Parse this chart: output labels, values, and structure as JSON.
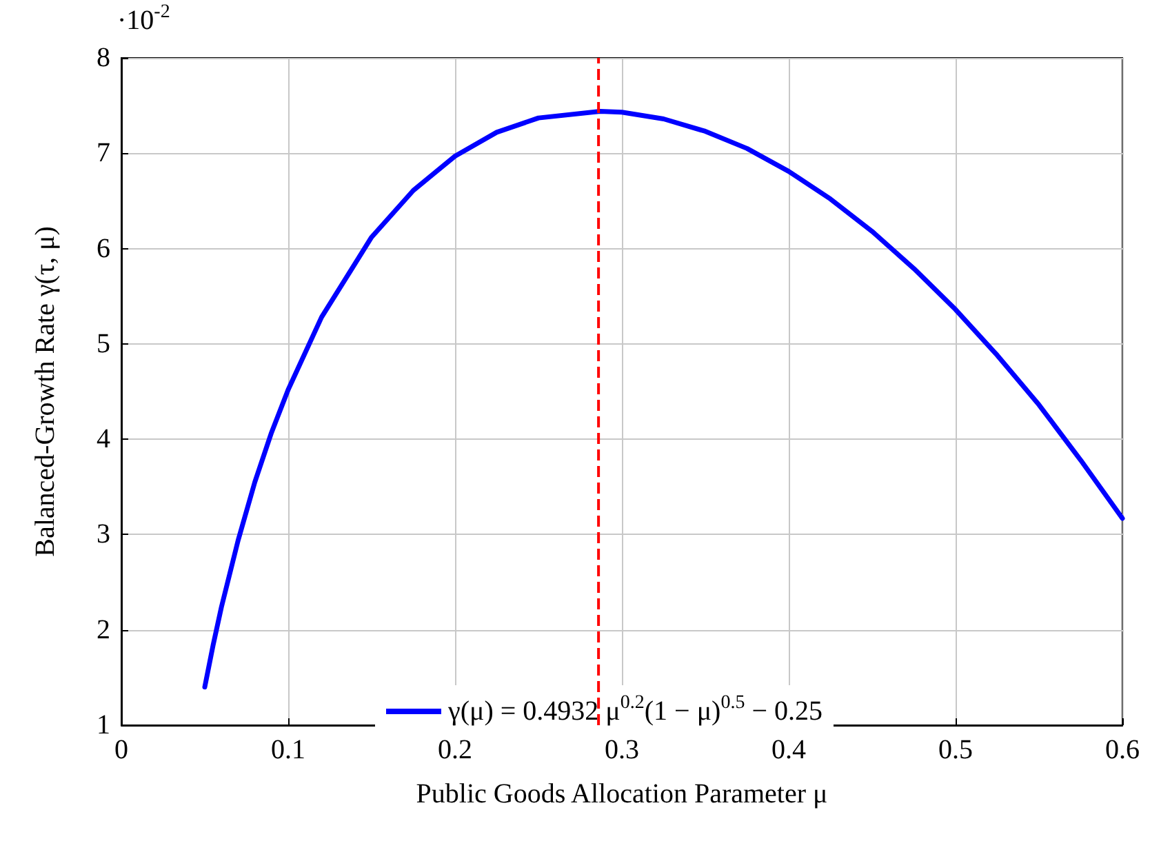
{
  "chart_data": {
    "type": "line",
    "xlabel": "Public Goods Allocation Parameter μ",
    "ylabel": "Balanced-Growth Rate γ(τ, μ)",
    "annotations": [
      "·10$^{-2}$"
    ],
    "x": [
      0.05,
      0.055,
      0.06,
      0.07,
      0.08,
      0.09,
      0.1,
      0.12,
      0.15,
      0.175,
      0.2,
      0.225,
      0.25,
      0.287,
      0.3,
      0.325,
      0.35,
      0.375,
      0.4,
      0.425,
      0.45,
      0.475,
      0.5,
      0.525,
      0.55,
      0.575,
      0.6
    ],
    "series": [
      {
        "name": "γ(μ) = 0.4932 μ$^{0.2}$(1 − μ)$^{0.5}$ − 0.25",
        "color": "#0000ff",
        "values": [
          1.4,
          1.84,
          2.24,
          2.94,
          3.55,
          4.07,
          4.52,
          5.28,
          6.12,
          6.61,
          6.97,
          7.22,
          7.37,
          7.44,
          7.43,
          7.36,
          7.23,
          7.05,
          6.81,
          6.52,
          6.18,
          5.79,
          5.36,
          4.88,
          4.36,
          3.78,
          3.17
        ]
      }
    ],
    "xlim": [
      0,
      0.6
    ],
    "xticks": [
      0,
      0.1,
      0.2,
      0.3,
      0.4,
      0.5,
      0.6
    ],
    "ylim": [
      1,
      8
    ],
    "yticks": [
      1,
      2,
      3,
      4,
      5,
      6,
      7,
      8
    ],
    "ref_lines": [
      {
        "axis": "x",
        "value": 0.286,
        "color": "#ff0000",
        "line_style": "dashed"
      }
    ],
    "grid": true,
    "legend": "bottom",
    "marker": "none",
    "line_style": "solid"
  }
}
